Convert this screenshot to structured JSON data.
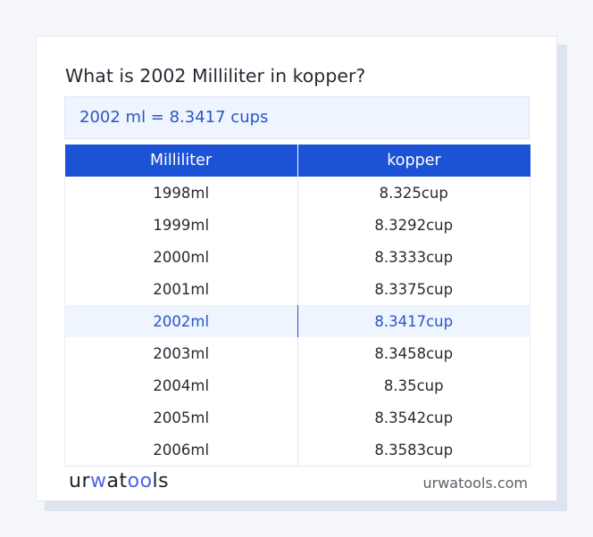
{
  "title": "What is 2002 Milliliter in kopper?",
  "result": "2002 ml = 8.3417 cups",
  "table": {
    "headers": [
      "Milliliter",
      "kopper"
    ],
    "rows": [
      [
        "1998ml",
        "8.325cup"
      ],
      [
        "1999ml",
        "8.3292cup"
      ],
      [
        "2000ml",
        "8.3333cup"
      ],
      [
        "2001ml",
        "8.3375cup"
      ],
      [
        "2002ml",
        "8.3417cup"
      ],
      [
        "2003ml",
        "8.3458cup"
      ],
      [
        "2004ml",
        "8.35cup"
      ],
      [
        "2005ml",
        "8.3542cup"
      ],
      [
        "2006ml",
        "8.3583cup"
      ]
    ],
    "highlighted_row": 4
  },
  "footer": {
    "logo": "urwatools",
    "site": "urwatools.com"
  },
  "colors": {
    "accent": "#1c52d6",
    "highlight_text": "#2b55c6",
    "highlight_bg": "#eef5ff"
  }
}
